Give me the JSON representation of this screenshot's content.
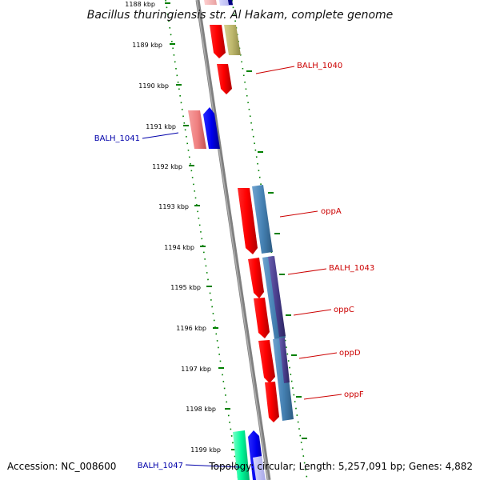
{
  "title": "Bacillus thuringiensis str. Al Hakam, complete genome",
  "footer": {
    "accession": "Accession: NC_008600",
    "summary": "Topology: circular; Length: 5,257,091 bp; Genes: 4,882"
  },
  "ticks": [
    "1188 kbp",
    "1189 kbp",
    "1190 kbp",
    "1191 kbp",
    "1192 kbp",
    "1193 kbp",
    "1194 kbp",
    "1195 kbp",
    "1196 kbp",
    "1197 kbp",
    "1198 kbp",
    "1199 kbp"
  ],
  "gene_labels": [
    {
      "name": "BALH_1040",
      "color": "#cc0000"
    },
    {
      "name": "BALH_1041",
      "color": "#0000aa"
    },
    {
      "name": "oppA",
      "color": "#cc0000"
    },
    {
      "name": "BALH_1043",
      "color": "#cc0000"
    },
    {
      "name": "oppC",
      "color": "#cc0000"
    },
    {
      "name": "oppD",
      "color": "#cc0000"
    },
    {
      "name": "oppF",
      "color": "#cc0000"
    },
    {
      "name": "BALH_1047",
      "color": "#0000aa"
    }
  ],
  "colors": {
    "cds": "#ff0000",
    "cds_pale": "#f08080",
    "cds_blue": "#0000ee",
    "steelblue": "#4682b4",
    "purple": "#483d8b",
    "olive": "#bdb76b",
    "teal": "#00fa9a",
    "backbone": "#808080",
    "ticks": "#008000"
  }
}
